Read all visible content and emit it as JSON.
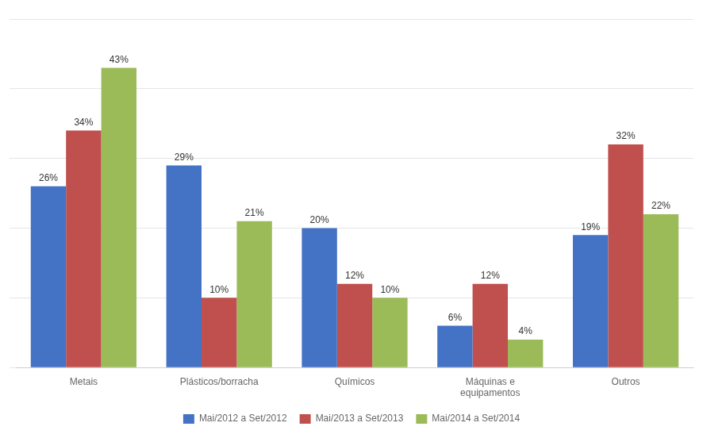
{
  "chart_data": {
    "type": "bar",
    "categories": [
      "Metais",
      "Plásticos/borracha",
      "Químicos",
      "Máquinas e\nequipamentos",
      "Outros"
    ],
    "series": [
      {
        "name": "Mai/2012 a Set/2012",
        "color": "#4472C4",
        "values": [
          26,
          29,
          20,
          6,
          19
        ],
        "value_labels": [
          "26%",
          "29%",
          "20%",
          "6%",
          "19%"
        ]
      },
      {
        "name": "Mai/2013 a Set/2013",
        "color": "#C0504D",
        "values": [
          34,
          10,
          12,
          12,
          32
        ],
        "value_labels": [
          "34%",
          "10%",
          "12%",
          "12%",
          "32%"
        ]
      },
      {
        "name": "Mai/2014 a Set/2014",
        "color": "#9BBB59",
        "values": [
          43,
          21,
          10,
          4,
          22
        ],
        "value_labels": [
          "43%",
          "21%",
          "10%",
          "4%",
          "22%"
        ]
      }
    ],
    "ylim": [
      0,
      50
    ],
    "yticks": [
      0,
      10,
      20,
      30,
      40,
      50
    ],
    "grid": true,
    "legend": "bottom",
    "data_labels": true,
    "tick_labels": "x"
  }
}
